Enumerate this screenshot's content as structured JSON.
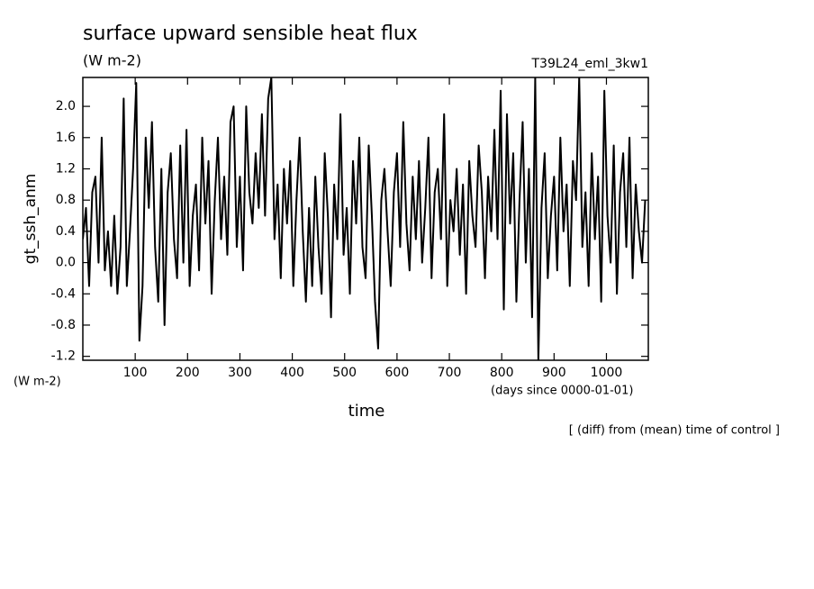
{
  "chart_data": {
    "type": "line",
    "title": "surface upward sensible heat flux",
    "subtitle": "(W m-2)",
    "run_label": "T39L24_eml_3kw1",
    "ylabel": "gt_ssh_anm",
    "yunits": "(W m-2)",
    "xlabel": "time",
    "xunits": "(days since 0000-01-01)",
    "note": "[ (diff) from (mean) time of control ]",
    "color": "#000000",
    "xlim": [
      0,
      1080
    ],
    "xticks": [
      100,
      200,
      300,
      400,
      500,
      600,
      700,
      800,
      900,
      1000
    ],
    "ylim": [
      -1.25,
      2.37
    ],
    "yticks": [
      -1.2,
      -0.8,
      -0.4,
      {
        "value": 0,
        "label": "0.0"
      },
      0.4,
      0.8,
      1.2,
      1.6,
      {
        "value": 2,
        "label": "2.0"
      }
    ],
    "x": [
      0,
      6,
      12,
      18,
      24,
      30,
      36,
      42,
      48,
      54,
      60,
      66,
      72,
      78,
      84,
      90,
      96,
      102,
      108,
      114,
      120,
      126,
      132,
      138,
      144,
      150,
      156,
      162,
      168,
      174,
      180,
      186,
      192,
      198,
      204,
      210,
      216,
      222,
      228,
      234,
      240,
      246,
      252,
      258,
      264,
      270,
      276,
      282,
      288,
      294,
      300,
      306,
      312,
      318,
      324,
      330,
      336,
      342,
      348,
      354,
      360,
      366,
      372,
      378,
      384,
      390,
      396,
      402,
      408,
      414,
      420,
      426,
      432,
      438,
      444,
      450,
      456,
      462,
      468,
      474,
      480,
      486,
      492,
      498,
      504,
      510,
      516,
      522,
      528,
      534,
      540,
      546,
      552,
      558,
      564,
      570,
      576,
      582,
      588,
      594,
      600,
      606,
      612,
      618,
      624,
      630,
      636,
      642,
      648,
      654,
      660,
      666,
      672,
      678,
      684,
      690,
      696,
      702,
      708,
      714,
      720,
      726,
      732,
      738,
      744,
      750,
      756,
      762,
      768,
      774,
      780,
      786,
      792,
      798,
      804,
      810,
      816,
      822,
      828,
      834,
      840,
      846,
      852,
      858,
      864,
      870,
      876,
      882,
      888,
      894,
      900,
      906,
      912,
      918,
      924,
      930,
      936,
      942,
      948,
      954,
      960,
      966,
      972,
      978,
      984,
      990,
      996,
      1002,
      1008,
      1014,
      1020,
      1026,
      1032,
      1038,
      1044,
      1050,
      1056,
      1062,
      1068,
      1074
    ],
    "values": [
      0.3,
      0.7,
      -0.3,
      0.9,
      1.1,
      0.0,
      1.6,
      -0.1,
      0.4,
      -0.3,
      0.6,
      -0.4,
      0.2,
      2.1,
      -0.3,
      0.4,
      1.2,
      2.3,
      -1.0,
      -0.3,
      1.6,
      0.7,
      1.8,
      0.2,
      -0.5,
      1.2,
      -0.8,
      0.9,
      1.4,
      0.3,
      -0.2,
      1.5,
      0.0,
      1.7,
      -0.3,
      0.6,
      1.0,
      -0.1,
      1.6,
      0.5,
      1.3,
      -0.4,
      0.8,
      1.6,
      0.3,
      1.1,
      0.1,
      1.8,
      2.0,
      0.2,
      1.1,
      -0.1,
      2.0,
      0.9,
      0.5,
      1.4,
      0.7,
      1.9,
      0.6,
      2.1,
      2.37,
      0.3,
      1.0,
      -0.2,
      1.2,
      0.5,
      1.3,
      -0.3,
      0.8,
      1.6,
      0.4,
      -0.5,
      0.7,
      -0.3,
      1.1,
      0.2,
      -0.4,
      1.4,
      0.6,
      -0.7,
      1.0,
      0.3,
      1.9,
      0.1,
      0.7,
      -0.4,
      1.3,
      0.5,
      1.6,
      0.2,
      -0.2,
      1.5,
      0.6,
      -0.5,
      -1.1,
      0.8,
      1.2,
      0.4,
      -0.3,
      0.9,
      1.4,
      0.2,
      1.8,
      0.5,
      -0.1,
      1.1,
      0.3,
      1.3,
      0.0,
      0.7,
      1.6,
      -0.2,
      0.9,
      1.2,
      0.3,
      1.9,
      -0.3,
      0.8,
      0.4,
      1.2,
      0.1,
      1.0,
      -0.4,
      1.3,
      0.6,
      0.2,
      1.5,
      0.9,
      -0.2,
      1.1,
      0.4,
      1.7,
      0.3,
      2.2,
      -0.6,
      1.9,
      0.5,
      1.4,
      -0.5,
      0.8,
      1.8,
      0.0,
      1.2,
      -0.7,
      2.37,
      -1.25,
      0.7,
      1.4,
      -0.2,
      0.6,
      1.1,
      -0.1,
      1.6,
      0.4,
      1.0,
      -0.3,
      1.3,
      0.8,
      2.37,
      0.2,
      0.9,
      -0.3,
      1.4,
      0.3,
      1.1,
      -0.5,
      2.2,
      0.6,
      0.0,
      1.5,
      -0.4,
      0.9,
      1.4,
      0.2,
      1.6,
      -0.2,
      1.0,
      0.4,
      0.0,
      0.8
    ]
  }
}
